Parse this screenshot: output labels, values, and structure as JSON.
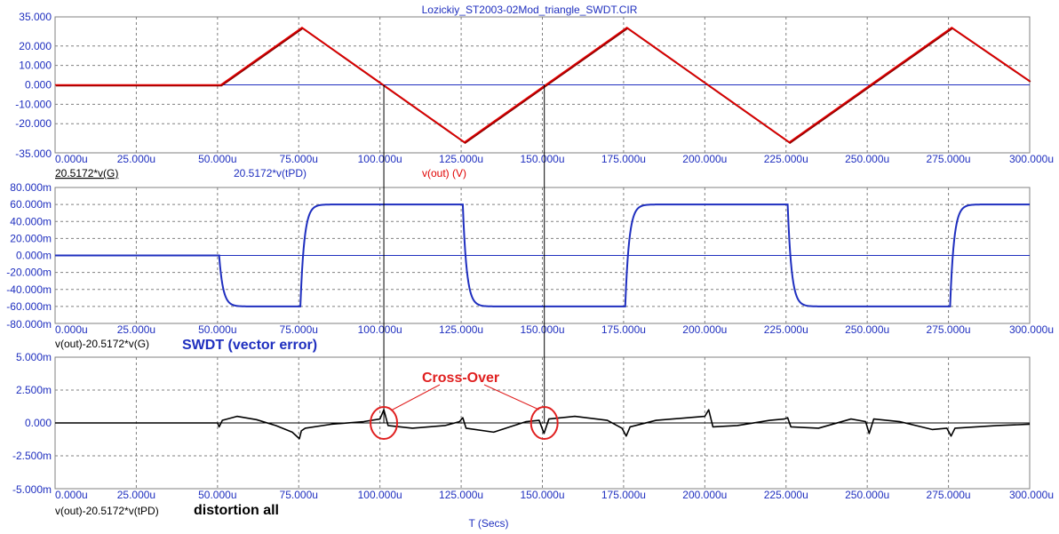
{
  "window_title": "Lozickiy_ST2003-02Mod_triangle_SWDT.CIR",
  "x_axis_label": "T (Secs)",
  "annotations": {
    "crossover": "Cross-Over",
    "swdt": "SWDT (vector error)",
    "distortion": "distortion all"
  },
  "colors": {
    "red_trace": "#e00000",
    "dark_red_trace": "#8b0000",
    "blue_trace": "#1f2fbf",
    "black_trace": "#000000",
    "grid": "#808080",
    "axis_text": "#1f2fbf",
    "annotation_red": "#e02020"
  },
  "chart_data": [
    {
      "type": "line",
      "xlim": [
        0,
        300
      ],
      "x_unit": "u",
      "ylim": [
        -35,
        35
      ],
      "x_ticks": [
        "0.000u",
        "25.000u",
        "50.000u",
        "75.000u",
        "100.000u",
        "125.000u",
        "150.000u",
        "175.000u",
        "200.000u",
        "225.000u",
        "250.000u",
        "275.000u",
        "300.000u"
      ],
      "y_ticks": [
        "35.000",
        "20.000",
        "10.000",
        "0.000",
        "-10.000",
        "-20.000",
        "-35.000"
      ],
      "y_tick_values": [
        35,
        20,
        10,
        0,
        -10,
        -20,
        -35
      ],
      "legend": [
        "20.5172*v(G)",
        "20.5172*v(tPD)",
        "v(out) (V)"
      ],
      "series": [
        {
          "name": "v(out) (V)",
          "x": [
            0,
            51,
            76,
            126,
            176,
            226,
            276,
            300
          ],
          "y": [
            0,
            0,
            29.5,
            -29.5,
            29.5,
            -29.5,
            29.5,
            2.0
          ]
        },
        {
          "name": "20.5172*v(tPD)",
          "x": [
            0,
            51,
            76,
            126,
            176,
            226,
            276,
            300
          ],
          "y": [
            0,
            0,
            29.5,
            -29.5,
            29.5,
            -29.5,
            29.5,
            2.0
          ]
        }
      ]
    },
    {
      "type": "line",
      "xlim": [
        0,
        300
      ],
      "x_unit": "u",
      "ylim": [
        -80,
        80
      ],
      "x_ticks": [
        "0.000u",
        "25.000u",
        "50.000u",
        "75.000u",
        "100.000u",
        "125.000u",
        "150.000u",
        "175.000u",
        "200.000u",
        "225.000u",
        "250.000u",
        "275.000u",
        "300.000u"
      ],
      "y_ticks": [
        "80.000m",
        "60.000m",
        "40.000m",
        "20.000m",
        "0.000m",
        "-20.000m",
        "-40.000m",
        "-60.000m",
        "-80.000m"
      ],
      "y_tick_values": [
        80,
        60,
        40,
        20,
        0,
        -20,
        -40,
        -60,
        -80
      ],
      "legend": [
        "v(out)-20.5172*v(G)"
      ],
      "series": [
        {
          "name": "v(out)-20.5172*v(G)",
          "edges_x": [
            50.5,
            75.5,
            125.5,
            175.5,
            225.5,
            275.5
          ],
          "levels": [
            0,
            -60,
            60,
            -60,
            60,
            -60,
            60
          ],
          "x": [
            0,
            50.5,
            75.5,
            125.5,
            175.5,
            225.5,
            275.5,
            300
          ],
          "y": [
            0,
            -60,
            60,
            -60,
            60,
            -60,
            60,
            60
          ]
        }
      ]
    },
    {
      "type": "line",
      "xlim": [
        0,
        300
      ],
      "x_unit": "u",
      "ylim": [
        -5,
        5
      ],
      "x_ticks": [
        "0.000u",
        "25.000u",
        "50.000u",
        "75.000u",
        "100.000u",
        "125.000u",
        "150.000u",
        "175.000u",
        "200.000u",
        "225.000u",
        "250.000u",
        "275.000u",
        "300.000u"
      ],
      "y_ticks": [
        "5.000m",
        "2.500m",
        "0.000",
        "-2.500m",
        "-5.000m"
      ],
      "y_tick_values": [
        5,
        2.5,
        0,
        -2.5,
        -5
      ],
      "legend": [
        "v(out)-20.5172*v(tPD)"
      ],
      "series": [
        {
          "name": "v(out)-20.5172*v(tPD)",
          "x": [
            0,
            50,
            50.5,
            51.5,
            56,
            62,
            68,
            73,
            75.2,
            75.8,
            77,
            85,
            95,
            100,
            101.2,
            102.5,
            110,
            120,
            124.5,
            125.5,
            126.5,
            135,
            145,
            149,
            150.5,
            152,
            160,
            170,
            174.5,
            175.8,
            177,
            185,
            195,
            200,
            201.2,
            202.5,
            210,
            220,
            224.5,
            225.5,
            226.5,
            235,
            245,
            249.5,
            250.6,
            252,
            260,
            270,
            274.5,
            275.8,
            277,
            290,
            300
          ],
          "y": [
            0,
            0,
            -0.3,
            0.2,
            0.5,
            0.25,
            -0.2,
            -0.7,
            -1.2,
            -0.6,
            -0.4,
            -0.1,
            0.1,
            0.3,
            1.0,
            -0.2,
            -0.4,
            -0.2,
            0.1,
            0.4,
            -0.4,
            -0.7,
            0.1,
            0.2,
            -0.8,
            0.3,
            0.5,
            0.2,
            -0.4,
            -1.0,
            -0.3,
            0.2,
            0.4,
            0.5,
            1.0,
            -0.3,
            -0.2,
            0.2,
            0.3,
            0.4,
            -0.3,
            -0.4,
            0.3,
            0.1,
            -0.8,
            0.3,
            0.1,
            -0.5,
            -0.4,
            -1.0,
            -0.4,
            -0.2,
            -0.1
          ]
        }
      ],
      "crossover_x": [
        101.2,
        150.6
      ]
    }
  ]
}
